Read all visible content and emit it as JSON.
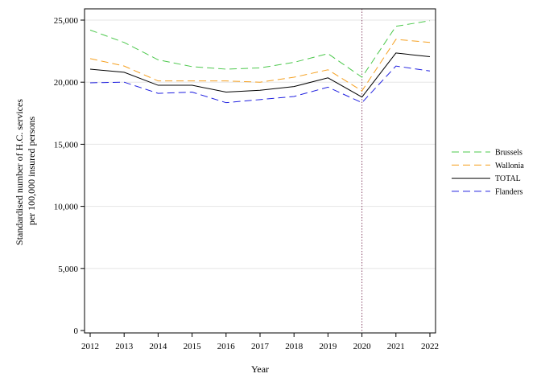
{
  "chart_data": {
    "type": "line",
    "title": "",
    "xlabel": "Year",
    "ylabel_lines": [
      "Standardised number of H.C. services",
      "per 100,000 insured persons"
    ],
    "x": [
      2012,
      2013,
      2014,
      2015,
      2016,
      2017,
      2018,
      2019,
      2020,
      2021,
      2022
    ],
    "x_tick_labels": [
      "2012",
      "2013",
      "2014",
      "2015",
      "2016",
      "2017",
      "2018",
      "2019",
      "2020",
      "2021",
      "2022"
    ],
    "ylim": [
      0,
      25000
    ],
    "yticks": [
      0,
      5000,
      10000,
      15000,
      20000,
      25000
    ],
    "y_tick_labels": [
      "0",
      "5,000",
      "10,000",
      "15,000",
      "20,000",
      "25,000"
    ],
    "grid": "horizontal",
    "reference_line_x": 2020,
    "legend_position": "right",
    "series": [
      {
        "name": "Brussels",
        "color": "#4cc84c",
        "dash": "dashed",
        "values": [
          24200,
          23200,
          21800,
          21250,
          21050,
          21150,
          21600,
          22300,
          20400,
          24500,
          24950
        ]
      },
      {
        "name": "Wallonia",
        "color": "#f5a020",
        "dash": "dashed",
        "values": [
          21900,
          21300,
          20100,
          20100,
          20100,
          20000,
          20400,
          21000,
          19300,
          23450,
          23200
        ]
      },
      {
        "name": "TOTAL",
        "color": "#000000",
        "dash": "solid",
        "values": [
          21050,
          20800,
          19750,
          19750,
          19200,
          19350,
          19650,
          20350,
          18800,
          22350,
          22050
        ]
      },
      {
        "name": "Flanders",
        "color": "#2020e0",
        "dash": "dashed",
        "values": [
          19950,
          20000,
          19100,
          19200,
          18350,
          18600,
          18850,
          19600,
          18350,
          21300,
          20900
        ]
      }
    ]
  }
}
